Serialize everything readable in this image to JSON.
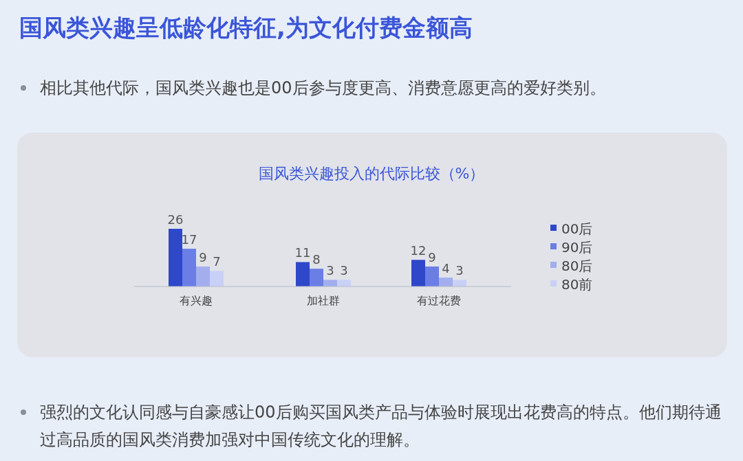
{
  "chart_data": {
    "type": "bar",
    "title": "国风类兴趣呈低龄化特征,为文化付费金额高",
    "subtitle": "国风类兴趣投入的代际比较（%）",
    "annotations": [
      "相比其他代际，国风类兴趣也是00后参与度更高、消费意愿更高的爱好类别。",
      "强烈的文化认同感与自豪感让00后购买国风类产品与体验时展现出花费高的特点。他们期待通过高品质的国风类消费加强对中国传统文化的理解。"
    ],
    "categories": [
      "有兴趣",
      "加社群",
      "有过花费"
    ],
    "series": [
      {
        "name": "00后",
        "color": "#2f47c9",
        "values": [
          26,
          11,
          12
        ]
      },
      {
        "name": "90后",
        "color": "#6a7ee6",
        "values": [
          17,
          8,
          9
        ]
      },
      {
        "name": "80后",
        "color": "#a2aeee",
        "values": [
          9,
          3,
          4
        ]
      },
      {
        "name": "80前",
        "color": "#c9d0f6",
        "values": [
          7,
          3,
          3
        ]
      }
    ],
    "data_labels": true,
    "legend": "right"
  }
}
